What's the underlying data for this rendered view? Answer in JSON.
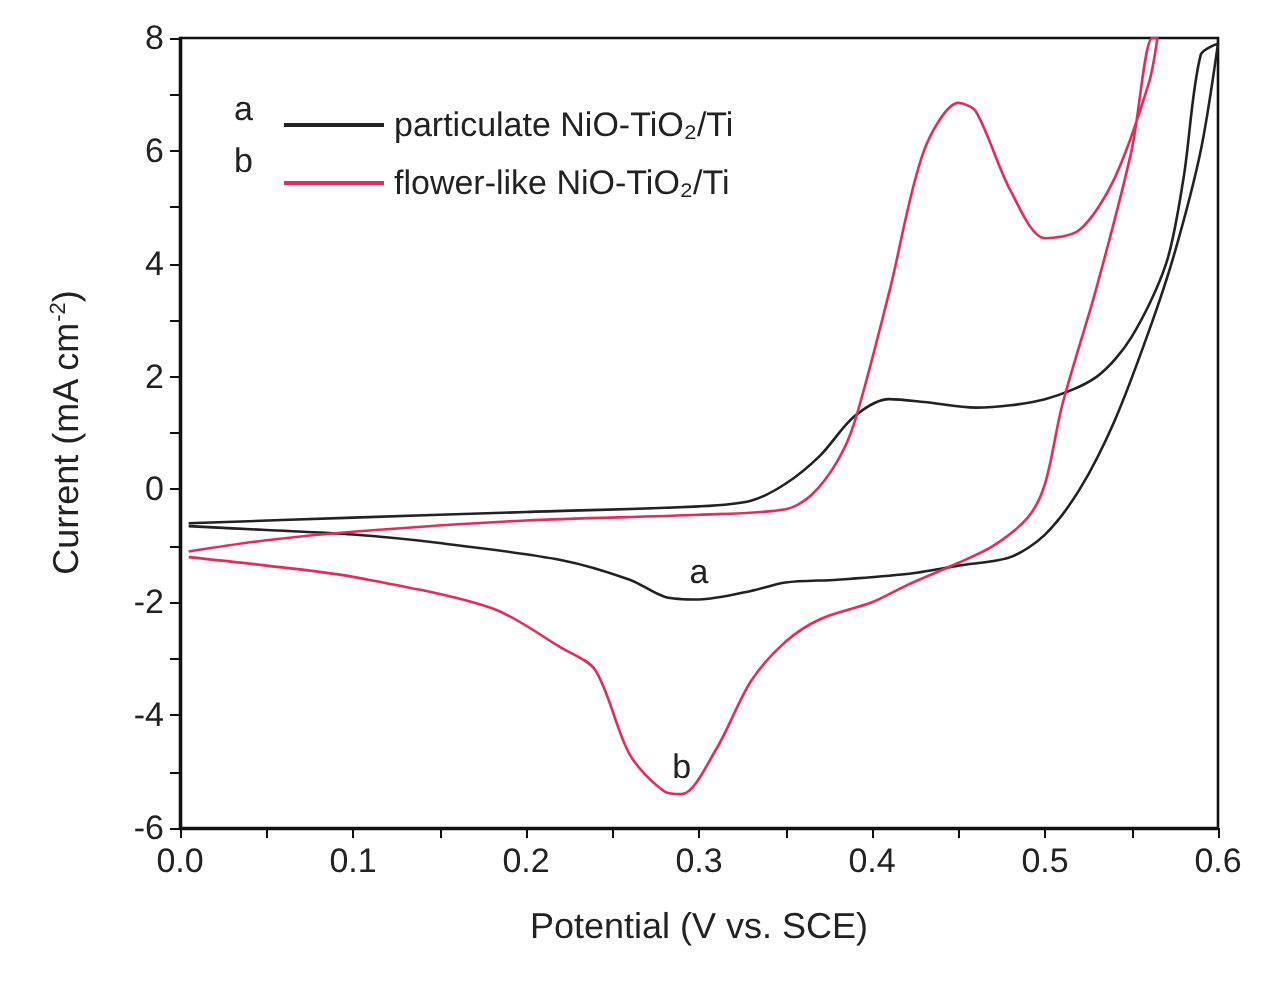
{
  "chart_data": {
    "type": "line",
    "xlabel": "Potential (V vs. SCE)",
    "ylabel": "Current (mA cm$^{-2}$)",
    "series": [
      {
        "name": "particulate NiO-TiO₂/Ti",
        "color": "#222222",
        "x": [
          0.005,
          0.1,
          0.2,
          0.3,
          0.33,
          0.35,
          0.37,
          0.39,
          0.41,
          0.43,
          0.46,
          0.5,
          0.53,
          0.55,
          0.57,
          0.58,
          0.59,
          0.6,
          0.59,
          0.575,
          0.56,
          0.54,
          0.52,
          0.5,
          0.48,
          0.45,
          0.42,
          0.38,
          0.35,
          0.33,
          0.3,
          0.28,
          0.26,
          0.22,
          0.15,
          0.1,
          0.05,
          0.005
        ],
        "values": [
          -0.6,
          -0.5,
          -0.4,
          -0.3,
          -0.2,
          0.1,
          0.6,
          1.3,
          1.6,
          1.55,
          1.45,
          1.6,
          2.0,
          2.7,
          4.0,
          5.5,
          7.7,
          7.9,
          6.0,
          4.2,
          2.8,
          1.2,
          0.0,
          -0.8,
          -1.2,
          -1.35,
          -1.5,
          -1.6,
          -1.65,
          -1.8,
          -1.95,
          -1.9,
          -1.6,
          -1.25,
          -0.95,
          -0.8,
          -0.72,
          -0.65
        ]
      },
      {
        "name": "flower-like NiO-TiO₂/Ti",
        "color": "#e8295a",
        "x": [
          0.005,
          0.05,
          0.1,
          0.2,
          0.3,
          0.35,
          0.365,
          0.38,
          0.39,
          0.41,
          0.43,
          0.45,
          0.46,
          0.48,
          0.5,
          0.52,
          0.54,
          0.56,
          0.565,
          0.562,
          0.55,
          0.53,
          0.51,
          0.5,
          0.49,
          0.47,
          0.45,
          0.42,
          0.4,
          0.37,
          0.35,
          0.33,
          0.31,
          0.29,
          0.28,
          0.26,
          0.24,
          0.22,
          0.18,
          0.1,
          0.05,
          0.005
        ],
        "values": [
          -1.1,
          -0.9,
          -0.75,
          -0.55,
          -0.45,
          -0.35,
          -0.1,
          0.5,
          1.2,
          3.5,
          6.0,
          6.85,
          6.7,
          5.3,
          4.45,
          4.6,
          5.5,
          7.2,
          8.0,
          8.0,
          6.0,
          3.6,
          1.5,
          0.1,
          -0.5,
          -1.0,
          -1.3,
          -1.7,
          -2.0,
          -2.3,
          -2.7,
          -3.4,
          -4.6,
          -5.4,
          -5.35,
          -4.7,
          -3.2,
          -2.8,
          -2.1,
          -1.55,
          -1.35,
          -1.2
        ]
      }
    ],
    "xlim": [
      0,
      0.6
    ],
    "xticks": [
      {
        "value": 0,
        "label": "0.0"
      },
      {
        "value": 0.05,
        "label": null
      },
      {
        "value": 0.1,
        "label": "0.1"
      },
      {
        "value": 0.15,
        "label": null
      },
      {
        "value": 0.2,
        "label": "0.2"
      },
      {
        "value": 0.25,
        "label": null
      },
      {
        "value": 0.3,
        "label": "0.3"
      },
      {
        "value": 0.35,
        "label": null
      },
      {
        "value": 0.4,
        "label": "0.4"
      },
      {
        "value": 0.45,
        "label": null
      },
      {
        "value": 0.5,
        "label": "0.5"
      },
      {
        "value": 0.55,
        "label": null
      },
      {
        "value": 0.6,
        "label": "0.6"
      }
    ],
    "ylim": [
      -6,
      8
    ],
    "yticks": [
      -6,
      {
        "value": -5,
        "label": null
      },
      -4,
      {
        "value": -3,
        "label": null
      },
      -2,
      {
        "value": -1,
        "label": null
      },
      0,
      {
        "value": 1,
        "label": null
      },
      2,
      {
        "value": 3,
        "label": null
      },
      4,
      {
        "value": 5,
        "label": null
      },
      6,
      {
        "value": 7,
        "label": null
      },
      8
    ],
    "annotations": [
      "a",
      "b",
      {
        "text": "a",
        "x": 0.3,
        "y": -1.95
      },
      {
        "text": "b",
        "x": 0.29,
        "y": -5.4
      }
    ],
    "legend": "top left",
    "grid": false,
    "marker": "none",
    "line_style": "solid"
  }
}
